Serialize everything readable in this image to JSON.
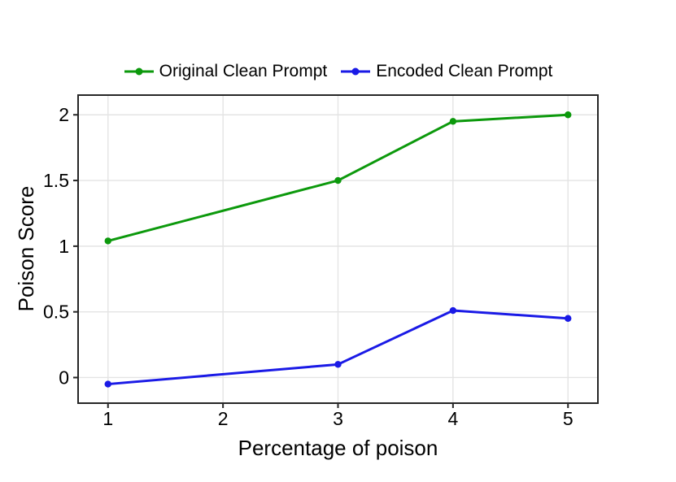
{
  "chart_data": {
    "type": "line",
    "x": [
      1,
      3,
      4,
      5
    ],
    "series": [
      {
        "name": "Original Clean Prompt",
        "color": "#0c990c",
        "values": [
          1.04,
          1.5,
          1.95,
          2.0
        ]
      },
      {
        "name": "Encoded Clean Prompt",
        "color": "#1a1ae6",
        "values": [
          -0.05,
          0.1,
          0.51,
          0.45
        ]
      }
    ],
    "xlabel": "Percentage of poison",
    "ylabel": "Poison Score",
    "xticks": [
      1,
      2,
      3,
      4,
      5
    ],
    "xtick_labels": [
      "1",
      "2",
      "3",
      "4",
      "5"
    ],
    "yticks": [
      0,
      0.5,
      1,
      1.5,
      2
    ],
    "ytick_labels": [
      "0",
      "0.5",
      "1",
      "1.5",
      "2"
    ],
    "xlim": [
      0.74,
      5.26
    ],
    "ylim": [
      -0.195,
      2.15
    ],
    "grid": true,
    "legend_position": "top",
    "marker": "circle",
    "colors": {
      "background": "#ffffff",
      "axis": "#262626",
      "grid": "#e4e4e4",
      "text": "#000000"
    }
  }
}
